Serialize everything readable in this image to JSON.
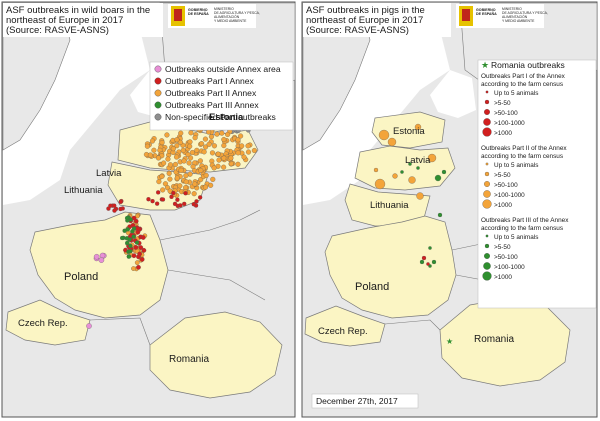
{
  "left_panel": {
    "title_lines": [
      "ASF outbreaks in wild boars in the",
      "northeast of Europe in 2017",
      "(Source: RASVE-ASNS)"
    ],
    "logo_text": [
      "GOBIERNO",
      "DE ESPAÑA",
      "MINISTERIO",
      "DE AGRICULTURA Y PESCA,",
      "ALIMENTACIÓN",
      "Y MEDIO AMBIENTE"
    ],
    "legend": [
      {
        "label": "Outbreaks outside Annex area",
        "color": "#e88fd6"
      },
      {
        "label": "Outbreaks Part I Annex",
        "color": "#d11f1f"
      },
      {
        "label": "Outbreaks Part II Annex",
        "color": "#f3a43a"
      },
      {
        "label": "Outbreaks Part III Annex",
        "color": "#2f8f2f"
      },
      {
        "label": "Non-specified Part outbreaks",
        "color": "#8e8e8e"
      }
    ],
    "countries": {
      "estonia": "Estonia",
      "latvia": "Latvia",
      "lithuania": "Lithuania",
      "poland": "Poland",
      "czech": "Czech Rep.",
      "romania": "Romania"
    }
  },
  "right_panel": {
    "title_lines": [
      "ASF outbreaks in pigs in the",
      "northeast of Europe in 2017",
      "(Source: RASVE-ASNS)"
    ],
    "logo_text": [
      "GOBIERNO",
      "DE ESPAÑA",
      "MINISTERIO",
      "DE AGRICULTURA Y PESCA,",
      "ALIMENTACIÓN",
      "Y MEDIO AMBIENTE"
    ],
    "romania_outbreaks": "Romania outbreaks",
    "legend_groups": [
      {
        "heading_lines": [
          "Outbreaks Part I of the Annex",
          "according to the farm census"
        ],
        "color": "#d11f1f",
        "items": [
          "Up to 5 animals",
          ">5-50",
          ">50-100",
          ">100-1000",
          ">1000"
        ]
      },
      {
        "heading_lines": [
          "Outbreaks Part II of the Annex",
          "according to the farm census"
        ],
        "color": "#f3a43a",
        "items": [
          "Up to 5 animals",
          ">5-50",
          ">50-100",
          ">100-1000",
          ">1000"
        ]
      },
      {
        "heading_lines": [
          "Outbreaks Part III of the Annex",
          "according to the farm census"
        ],
        "color": "#2f8f2f",
        "items": [
          "Up to 5 animals",
          ">5-50",
          ">50-100",
          ">100-1000",
          ">1000"
        ]
      }
    ],
    "countries": {
      "estonia": "Estonia",
      "latvia": "Latvia",
      "lithuania": "Lithuania",
      "poland": "Poland",
      "czech": "Czech Rep.",
      "romania": "Romania"
    },
    "date": "December 27th, 2017"
  },
  "colors": {
    "land": "#e8e8e8",
    "highlight": "#fbf5c4",
    "water": "#ffffff",
    "border": "#7a7a7a"
  }
}
